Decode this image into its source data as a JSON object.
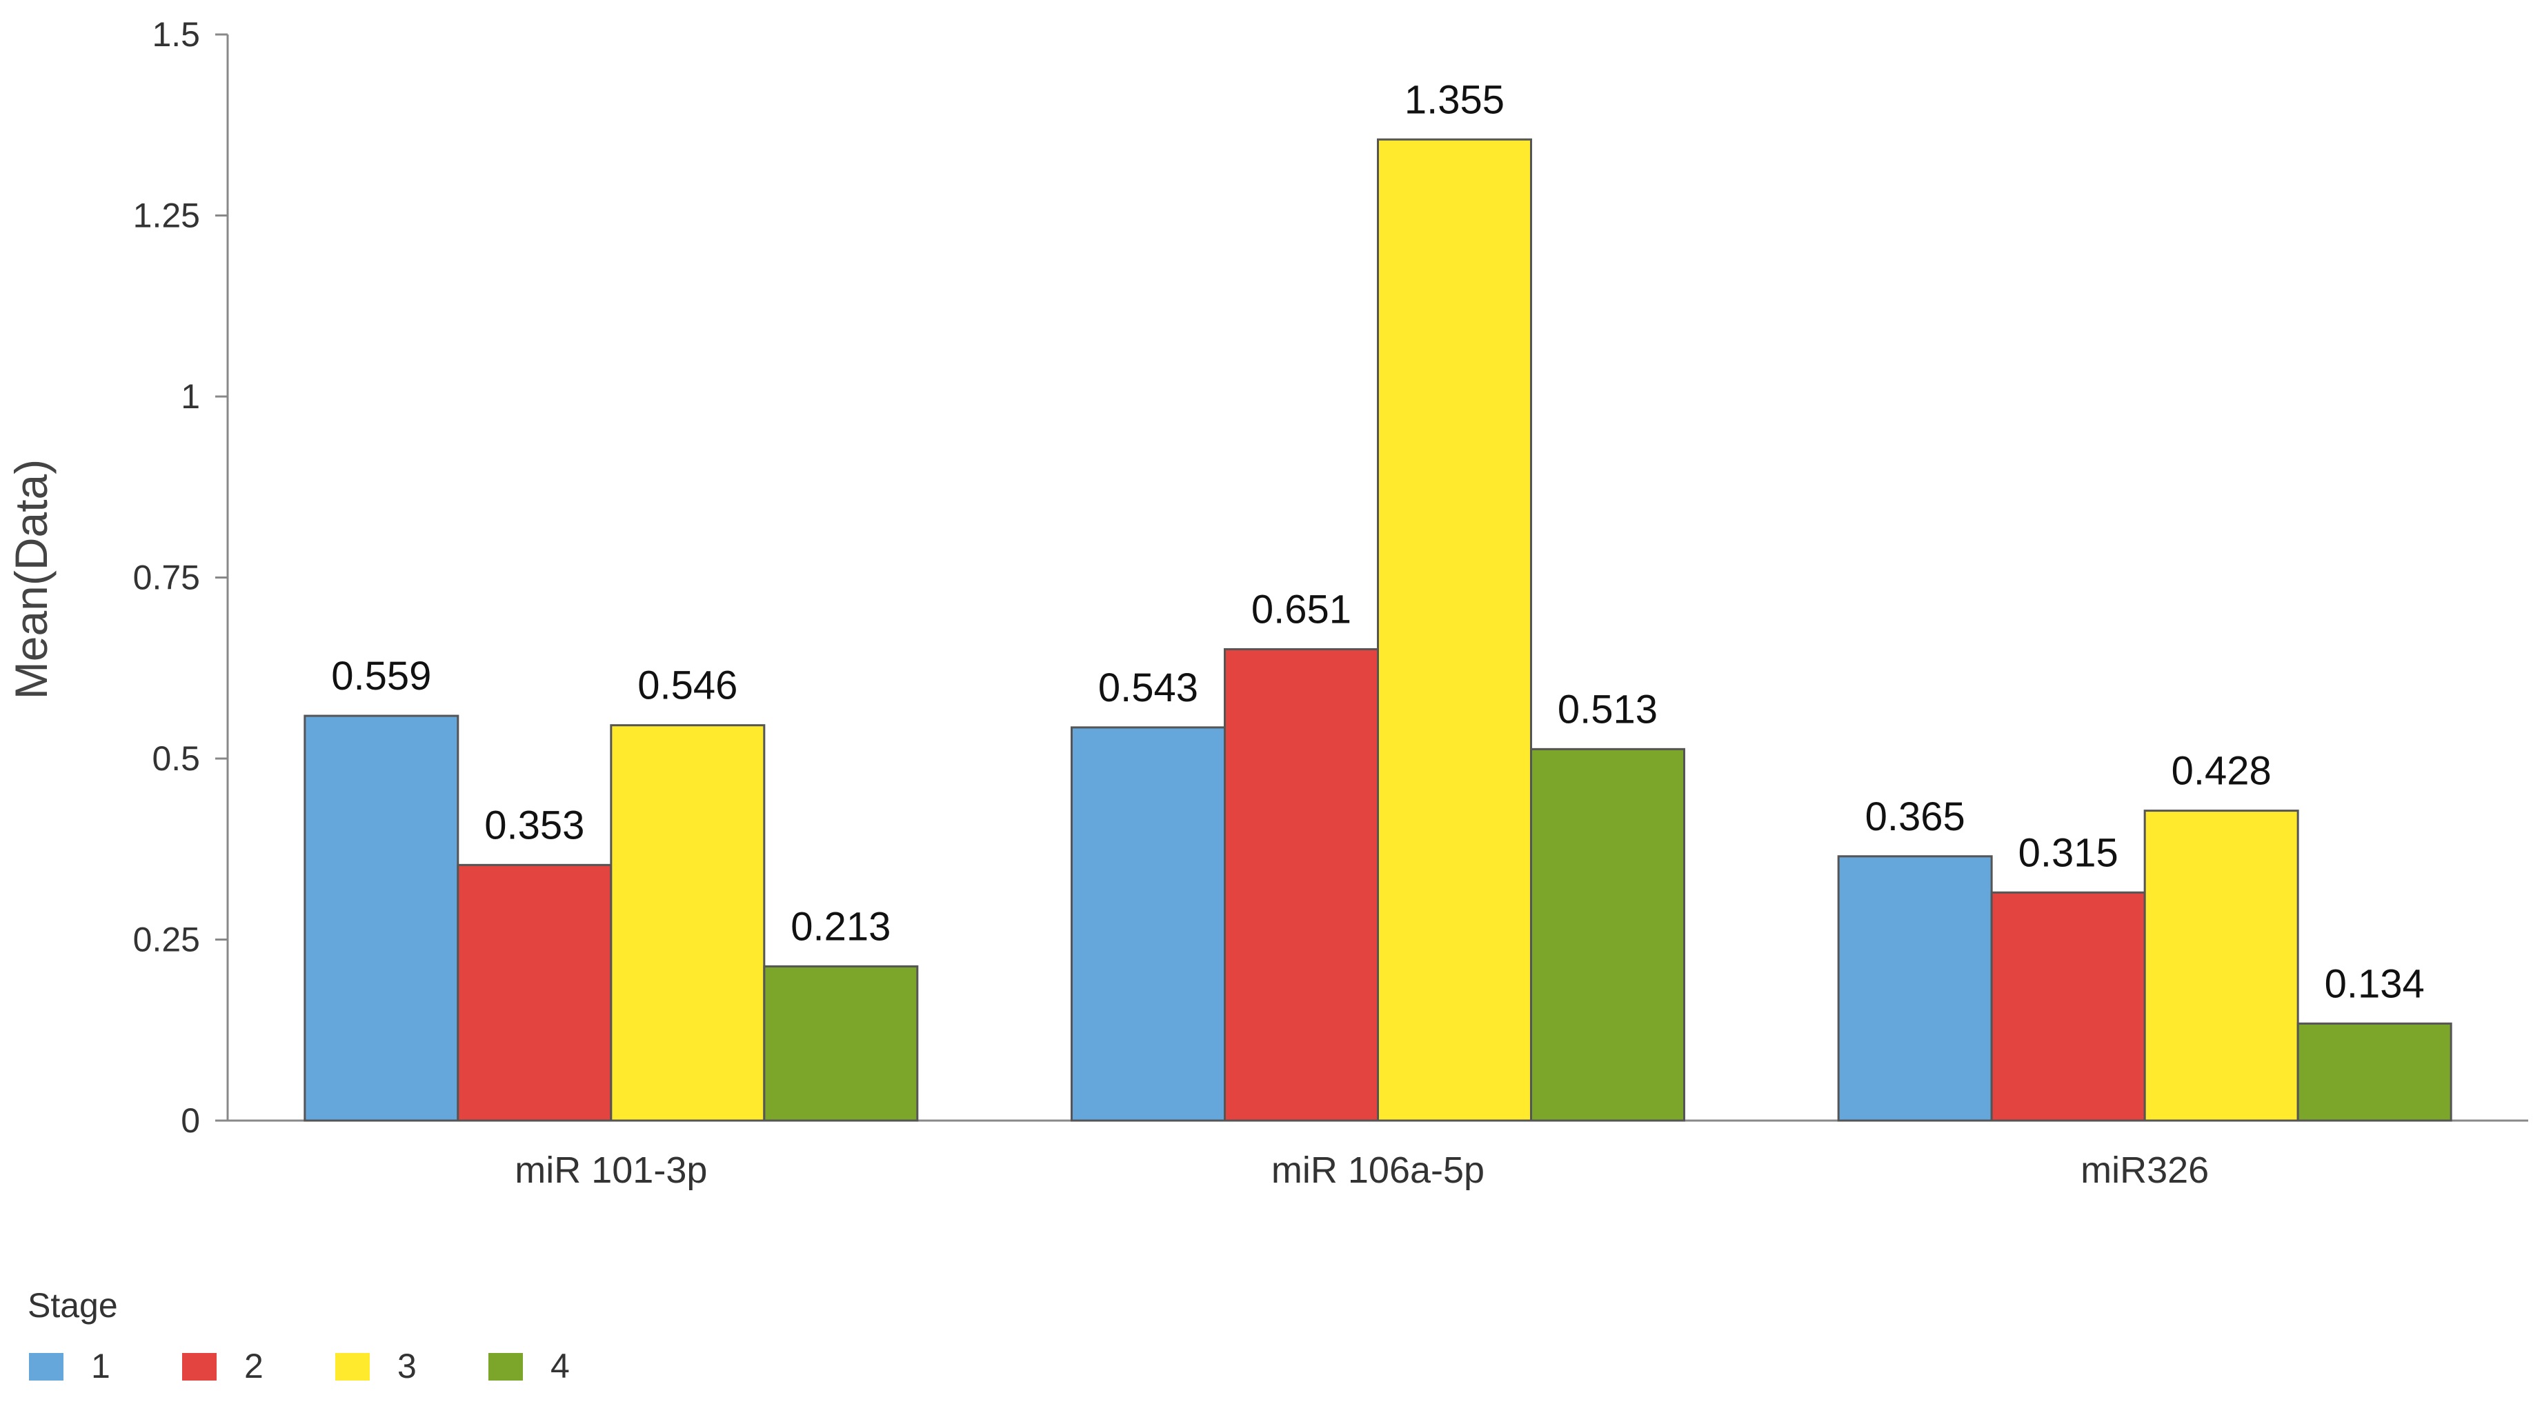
{
  "chart_data": {
    "type": "bar",
    "categories": [
      "miR 101-3p",
      "miR 106a-5p",
      "miR326"
    ],
    "series": [
      {
        "name": "1",
        "color": "#65A7DB",
        "values": [
          0.559,
          0.543,
          0.365
        ]
      },
      {
        "name": "2",
        "color": "#E34440",
        "values": [
          0.353,
          0.651,
          0.315
        ]
      },
      {
        "name": "3",
        "color": "#FFEA2E",
        "values": [
          0.546,
          1.355,
          0.428
        ]
      },
      {
        "name": "4",
        "color": "#7CA62A",
        "values": [
          0.213,
          0.513,
          0.134
        ]
      }
    ],
    "data_labels": [
      [
        "0.559",
        "0.543",
        "0.365"
      ],
      [
        "0.353",
        "0.651",
        "0.315"
      ],
      [
        "0.546",
        "1.355",
        "0.428"
      ],
      [
        "0.213",
        "0.513",
        "0.134"
      ]
    ],
    "ylabel": "Mean(Data)",
    "xlabel": "",
    "ylim": [
      0,
      1.5
    ],
    "yticks": [
      0,
      0.25,
      0.5,
      0.75,
      1,
      1.25,
      1.5
    ],
    "ytick_labels": [
      "0",
      "0.25",
      "0.5",
      "0.75",
      "1",
      "1.25",
      "1.5"
    ],
    "legend_title": "Stage",
    "legend_position": "bottom-left",
    "grid": false
  }
}
